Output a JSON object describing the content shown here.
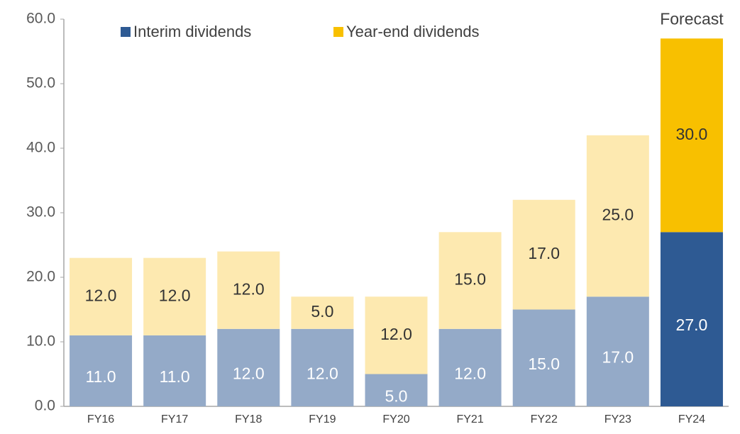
{
  "chart_data": {
    "type": "stacked_bar",
    "annotation": "Forecast",
    "categories": [
      "FY16",
      "FY17",
      "FY18",
      "FY19",
      "FY20",
      "FY21",
      "FY22",
      "FY23",
      "FY24"
    ],
    "series": [
      {
        "name": "Interim dividends",
        "color": "#2e5a93",
        "colors": [
          "#94aac8",
          "#94aac8",
          "#94aac8",
          "#94aac8",
          "#94aac8",
          "#94aac8",
          "#94aac8",
          "#94aac8",
          "#2e5a93"
        ],
        "label_color": "#ffffff",
        "values": [
          11,
          11,
          12,
          12,
          5,
          12,
          15,
          17,
          27
        ],
        "value_labels": [
          "11.0",
          "11.0",
          "12.0",
          "12.0",
          "5.0",
          "12.0",
          "15.0",
          "17.0",
          "27.0"
        ]
      },
      {
        "name": "Year-end dividends",
        "color": "#f8c000",
        "colors": [
          "#fde9b0",
          "#fde9b0",
          "#fde9b0",
          "#fde9b0",
          "#fde9b0",
          "#fde9b0",
          "#fde9b0",
          "#fde9b0",
          "#f8c000"
        ],
        "label_color": "#333333",
        "values": [
          12,
          12,
          12,
          5,
          12,
          15,
          17,
          25,
          30
        ],
        "value_labels": [
          "12.0",
          "12.0",
          "12.0",
          "5.0",
          "12.0",
          "15.0",
          "17.0",
          "25.0",
          "30.0"
        ]
      }
    ],
    "ylim": [
      0,
      60
    ],
    "yticks": [
      {
        "value": 0,
        "label": "0.0"
      },
      {
        "value": 10,
        "label": "10.0"
      },
      {
        "value": 20,
        "label": "20.0"
      },
      {
        "value": 30,
        "label": "30.0"
      },
      {
        "value": 40,
        "label": "40.0"
      },
      {
        "value": 50,
        "label": "50.0"
      },
      {
        "value": 60,
        "label": "60.0"
      }
    ]
  }
}
